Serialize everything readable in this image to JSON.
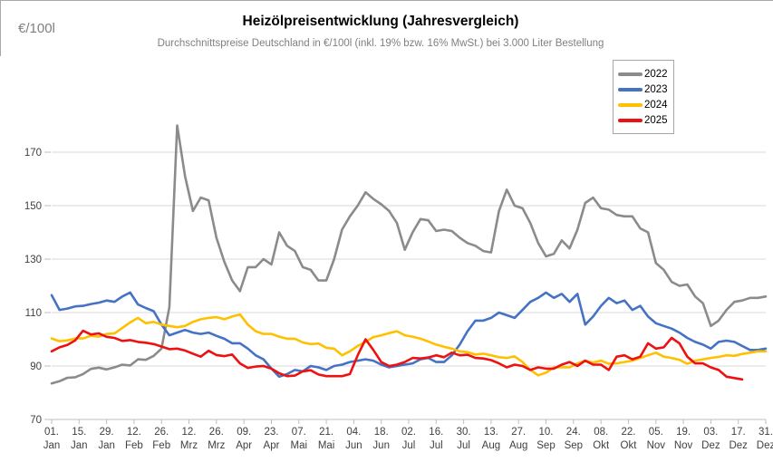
{
  "header": {
    "unit_label": "€/100l",
    "title": "Heizölpreisentwicklung (Jahresvergleich)",
    "subtitle": "Durchschnittspreise Deutschland in €/100l (inkl. 19% bzw. 16% MwSt.) bei 3.000 Liter Bestellung"
  },
  "legend": {
    "items": [
      {
        "label": "2022",
        "color": "#8b8b8b"
      },
      {
        "label": "2023",
        "color": "#4472c4"
      },
      {
        "label": "2024",
        "color": "#ffc000"
      },
      {
        "label": "2025",
        "color": "#ee1111"
      }
    ]
  },
  "style": {
    "gridline_color": "#d9d9d9",
    "axis_color": "#bfbfbf",
    "axis_text_color": "#404040"
  },
  "chart_data": {
    "type": "line",
    "title": "Heizölpreisentwicklung (Jahresvergleich)",
    "subtitle": "Durchschnittspreise Deutschland in €/100l (inkl. 19% bzw. 16% MwSt.) bei 3.000 Liter Bestellung",
    "xlabel": "",
    "ylabel": "€/100l",
    "legend_position": "top-right",
    "grid": true,
    "ylim": [
      70,
      190
    ],
    "y_axis": {
      "ticks": [
        70,
        90,
        110,
        130,
        150,
        170
      ]
    },
    "x_axis": {
      "unit": "day_of_year",
      "ticks": [
        {
          "day_of_year": 1,
          "line1": "01.",
          "line2": "Jan"
        },
        {
          "day_of_year": 15,
          "line1": "15.",
          "line2": "Jan"
        },
        {
          "day_of_year": 29,
          "line1": "29.",
          "line2": "Jan"
        },
        {
          "day_of_year": 43,
          "line1": "12.",
          "line2": "Feb"
        },
        {
          "day_of_year": 57,
          "line1": "26.",
          "line2": "Feb"
        },
        {
          "day_of_year": 71,
          "line1": "12.",
          "line2": "Mrz"
        },
        {
          "day_of_year": 85,
          "line1": "26.",
          "line2": "Mrz"
        },
        {
          "day_of_year": 99,
          "line1": "09.",
          "line2": "Apr"
        },
        {
          "day_of_year": 113,
          "line1": "23.",
          "line2": "Apr"
        },
        {
          "day_of_year": 127,
          "line1": "07.",
          "line2": "Mai"
        },
        {
          "day_of_year": 141,
          "line1": "21.",
          "line2": "Mai"
        },
        {
          "day_of_year": 155,
          "line1": "04.",
          "line2": "Jun"
        },
        {
          "day_of_year": 169,
          "line1": "18.",
          "line2": "Jun"
        },
        {
          "day_of_year": 183,
          "line1": "02.",
          "line2": "Jul"
        },
        {
          "day_of_year": 197,
          "line1": "16.",
          "line2": "Jul"
        },
        {
          "day_of_year": 211,
          "line1": "30.",
          "line2": "Jul"
        },
        {
          "day_of_year": 225,
          "line1": "13.",
          "line2": "Aug"
        },
        {
          "day_of_year": 239,
          "line1": "27.",
          "line2": "Aug"
        },
        {
          "day_of_year": 253,
          "line1": "10.",
          "line2": "Sep"
        },
        {
          "day_of_year": 267,
          "line1": "24.",
          "line2": "Sep"
        },
        {
          "day_of_year": 281,
          "line1": "08.",
          "line2": "Okt"
        },
        {
          "day_of_year": 295,
          "line1": "22.",
          "line2": "Okt"
        },
        {
          "day_of_year": 309,
          "line1": "05.",
          "line2": "Nov"
        },
        {
          "day_of_year": 323,
          "line1": "19.",
          "line2": "Nov"
        },
        {
          "day_of_year": 337,
          "line1": "03.",
          "line2": "Dez"
        },
        {
          "day_of_year": 351,
          "line1": "17.",
          "line2": "Dez"
        },
        {
          "day_of_year": 365,
          "line1": "31.",
          "line2": "Dez"
        }
      ]
    },
    "x_days": [
      1,
      5,
      9,
      13,
      17,
      21,
      25,
      29,
      33,
      37,
      41,
      45,
      49,
      53,
      57,
      61,
      65,
      69,
      73,
      77,
      81,
      85,
      89,
      93,
      97,
      101,
      105,
      109,
      113,
      117,
      121,
      125,
      129,
      133,
      137,
      141,
      145,
      149,
      153,
      157,
      161,
      165,
      169,
      173,
      177,
      181,
      185,
      189,
      193,
      197,
      201,
      205,
      209,
      213,
      217,
      221,
      225,
      229,
      233,
      237,
      241,
      245,
      249,
      253,
      257,
      261,
      265,
      269,
      273,
      277,
      281,
      285,
      289,
      293,
      297,
      301,
      305,
      309,
      313,
      317,
      321,
      325,
      329,
      333,
      337,
      341,
      345,
      349,
      353,
      357,
      361,
      365
    ],
    "series": [
      {
        "name": "2022",
        "color": "#8b8b8b",
        "values": [
          83.5,
          84.3,
          85.6,
          85.8,
          87,
          88.9,
          89.4,
          88.7,
          89.5,
          90.5,
          90.2,
          92.5,
          92.3,
          93.8,
          96.5,
          112,
          180,
          161,
          148,
          153,
          152,
          138,
          129,
          122,
          118,
          127,
          127,
          130,
          128,
          140,
          135,
          133,
          127,
          126,
          122,
          122,
          130,
          141,
          146,
          150,
          155,
          152.5,
          150.5,
          148,
          143.5,
          133.5,
          140,
          145,
          144.5,
          140.5,
          141,
          140.5,
          138,
          136,
          135,
          133,
          132.5,
          148,
          156,
          150,
          149,
          143.5,
          136,
          131,
          132,
          137,
          134,
          141,
          151,
          153,
          149,
          148.5,
          146.5,
          146,
          146,
          141.5,
          140,
          128.5,
          126,
          121.5,
          120,
          120.5,
          116,
          113.5,
          105,
          107,
          111,
          114,
          114.5,
          115.5,
          115.5,
          116
        ]
      },
      {
        "name": "2023",
        "color": "#4472c4",
        "values": [
          116.5,
          111,
          111.5,
          112.3,
          112.5,
          113.2,
          113.7,
          114.5,
          114,
          116,
          117.5,
          113,
          111.7,
          110.5,
          105.5,
          101.5,
          102.5,
          103.5,
          102.5,
          102,
          102.5,
          101.3,
          100.2,
          98.5,
          98.5,
          96.5,
          94,
          92.5,
          89,
          86,
          87,
          88.5,
          88,
          90,
          89.5,
          88.5,
          90,
          90.5,
          91.5,
          92,
          92.5,
          92,
          90.5,
          89.5,
          90,
          90.5,
          91,
          92.5,
          93,
          91.5,
          91.5,
          94,
          98,
          103,
          107,
          107,
          108,
          110,
          109,
          108,
          111,
          114,
          115.5,
          117.5,
          115.5,
          117,
          114,
          117,
          105.5,
          108.5,
          112.5,
          115.5,
          113.5,
          114.5,
          111,
          112.5,
          108.5,
          106,
          105,
          104,
          102.5,
          100.5,
          99,
          98,
          96.5,
          99,
          99.5,
          99,
          97.5,
          96,
          96,
          96.5
        ]
      },
      {
        "name": "2024",
        "color": "#ffc000",
        "values": [
          100.3,
          99.3,
          99.6,
          100.3,
          100.3,
          101.3,
          101,
          102,
          102.2,
          104.2,
          106.3,
          108,
          106,
          106.5,
          105.5,
          105,
          104.5,
          105,
          106.5,
          107.5,
          108,
          108.3,
          107.5,
          108.5,
          109.3,
          105.5,
          103,
          102,
          102,
          101,
          100.2,
          100.2,
          98.8,
          98.2,
          98.4,
          96.8,
          96.5,
          94,
          95.5,
          97.5,
          99,
          100.8,
          101.5,
          102.3,
          103,
          101.5,
          101,
          100.2,
          99.2,
          98,
          97.2,
          96.5,
          95.5,
          95.2,
          94.3,
          94.6,
          94,
          93.3,
          93,
          93.6,
          91.5,
          88.5,
          86.5,
          87.5,
          89.5,
          89.5,
          89.5,
          91,
          92,
          91.3,
          92,
          90.8,
          91,
          91.5,
          92,
          93,
          94,
          95,
          93.5,
          93,
          92.3,
          90.8,
          92,
          92.5,
          93,
          93.4,
          94,
          93.8,
          94.5,
          95,
          95.5,
          95.5
        ]
      },
      {
        "name": "2025",
        "color": "#ee1111",
        "values": [
          95.5,
          97,
          97.9,
          99.6,
          103.2,
          101.8,
          102.2,
          100.9,
          100.5,
          99.4,
          99.7,
          99,
          98.7,
          98.2,
          97.3,
          96.3,
          96.5,
          95.8,
          94.6,
          93.5,
          95.7,
          94.1,
          93.7,
          94.3,
          91,
          89.3,
          89.8,
          90,
          89,
          87.3,
          86.2,
          86.4,
          88,
          88.4,
          86.8,
          86.2,
          86.2,
          86.2,
          87,
          94,
          100,
          96,
          91.5,
          90,
          90.5,
          91.5,
          93,
          92.8,
          93.2,
          94,
          93.3,
          95,
          94,
          94.2,
          93,
          92.8,
          92.2,
          91,
          89.5,
          90.5,
          90,
          88.5,
          89.5,
          89,
          89,
          90.5,
          91.5,
          90,
          92,
          90.5,
          90.5,
          88.5,
          93.5,
          94,
          92.5,
          93.5,
          98.5,
          96.5,
          97,
          100.5,
          98.5,
          93.5,
          91,
          91,
          89.5,
          88.5,
          86,
          85.5,
          85,
          null,
          null,
          null
        ]
      }
    ]
  }
}
